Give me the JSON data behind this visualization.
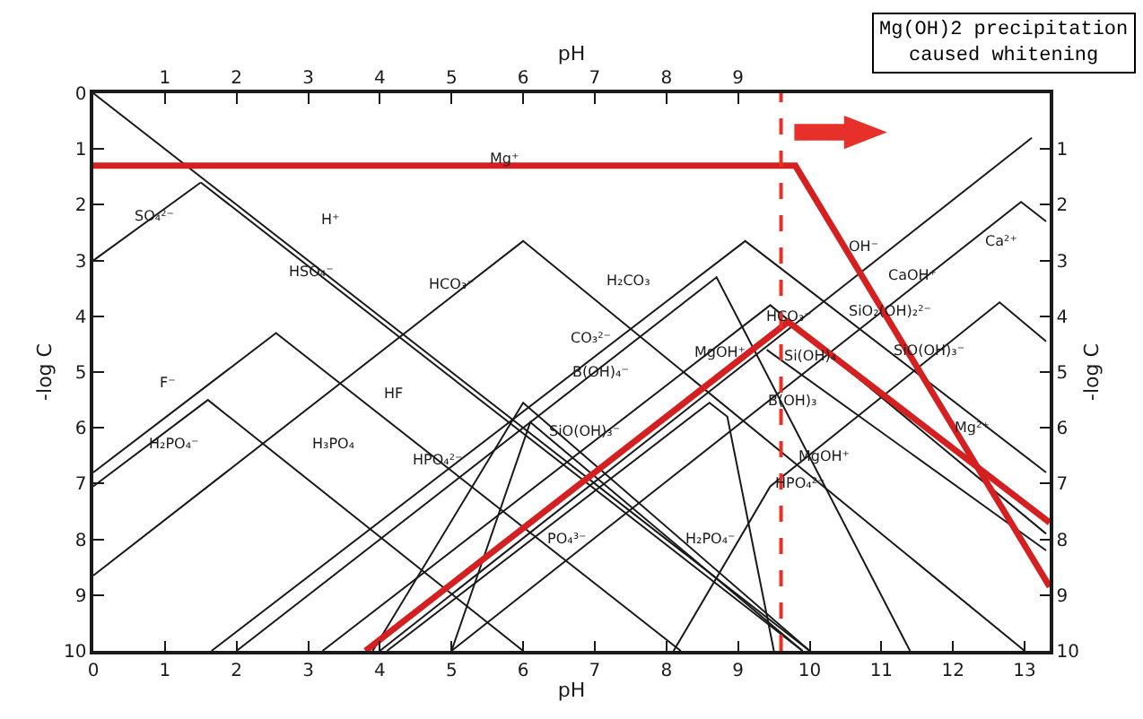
{
  "chart_data": {
    "type": "line",
    "xlabel": "pH",
    "ylabel": "-log C",
    "x2label": "pH",
    "y2label": "-log C",
    "xlim": [
      0,
      13.35
    ],
    "xticks": [
      0,
      1,
      2,
      3,
      4,
      5,
      6,
      7,
      8,
      9,
      10,
      11,
      12,
      13
    ],
    "x2lim": [
      0,
      13.35
    ],
    "x2ticks": [
      1,
      2,
      3,
      4,
      5,
      6,
      7,
      8,
      9
    ],
    "ylim": [
      10,
      0
    ],
    "yticks": [
      0,
      1,
      2,
      3,
      4,
      5,
      6,
      7,
      8,
      9,
      10
    ],
    "y2lim": [
      10,
      0
    ],
    "y2ticks": [
      1,
      2,
      3,
      4,
      5,
      6,
      7,
      8,
      9,
      10
    ],
    "marker": "none",
    "line_style": "solid",
    "series": [
      {
        "color": "#1a1a1a",
        "x": [
          0,
          10
        ],
        "values": [
          0,
          10
        ]
      },
      {
        "color": "#1a1a1a",
        "x": [
          1.5,
          9.9
        ],
        "values": [
          1.6,
          10
        ]
      },
      {
        "color": "#1a1a1a",
        "x": [
          0,
          1.5
        ],
        "values": [
          3,
          1.6
        ]
      },
      {
        "color": "#1a1a1a",
        "x": [
          4,
          13.1
        ],
        "values": [
          10,
          0.8
        ]
      },
      {
        "color": "#1a1a1a",
        "x": [
          5,
          12.95,
          13.3
        ],
        "values": [
          10,
          1.95,
          2.3
        ]
      },
      {
        "color": "#1a1a1a",
        "x": [
          0,
          6,
          13
        ],
        "values": [
          8.65,
          2.65,
          10
        ]
      },
      {
        "color": "#1a1a1a",
        "x": [
          1.65,
          9.1,
          13.3
        ],
        "values": [
          10,
          2.65,
          6.8
        ]
      },
      {
        "color": "#1a1a1a",
        "x": [
          2,
          8.7,
          11.4
        ],
        "values": [
          10,
          3.3,
          10
        ]
      },
      {
        "color": "#1a1a1a",
        "x": [
          3.2,
          9.45,
          13.3
        ],
        "values": [
          10,
          3.8,
          7.9
        ]
      },
      {
        "color": "#1a1a1a",
        "x": [
          0,
          2.55,
          8.2
        ],
        "values": [
          6.8,
          4.3,
          10
        ]
      },
      {
        "color": "#1a1a1a",
        "x": [
          0,
          1.6,
          6
        ],
        "values": [
          7.05,
          5.5,
          10
        ]
      },
      {
        "color": "#1a1a1a",
        "x": [
          3.9,
          6,
          10
        ],
        "values": [
          10,
          5.55,
          10
        ]
      },
      {
        "color": "#1a1a1a",
        "x": [
          5,
          6.1,
          9.9
        ],
        "values": [
          10,
          5.9,
          10
        ]
      },
      {
        "color": "#1a1a1a",
        "x": [
          4.1,
          8.6,
          8.85,
          9.5
        ],
        "values": [
          10,
          5.55,
          5.8,
          10
        ]
      },
      {
        "color": "#1a1a1a",
        "x": [
          8.1,
          9.45,
          12.65,
          13.3
        ],
        "values": [
          10,
          7.05,
          3.75,
          4.45
        ]
      },
      {
        "color": "#1a1a1a",
        "x": [
          9.4,
          13.3
        ],
        "values": [
          4.6,
          8.2
        ]
      },
      {
        "color": "#d42020",
        "x": [
          0,
          9.8,
          13.35
        ],
        "values": [
          1.3,
          1.3,
          8.85
        ]
      },
      {
        "color": "#d42020",
        "x": [
          3.8,
          9.7,
          13.35
        ],
        "values": [
          10,
          4.1,
          7.7
        ]
      }
    ],
    "ref_lines": [
      {
        "axis": "x",
        "value": 9.6,
        "color": "#e8302a",
        "line_style": "dashed"
      }
    ],
    "annotations": [
      "Mg(OH)2 precipitation\ncaused whitening",
      "Mg⁺",
      "SO₄²⁻",
      "H⁺",
      "HSO₄⁻",
      "HCO₃⁻",
      "H₂CO₃",
      "CO₃²⁻",
      "B(OH)₄⁻",
      "SiO(OH)₃⁻",
      "F⁻",
      "H₂PO₄⁻",
      "H₃PO₄",
      "HF",
      "HPO₄²⁻",
      "PO₄³⁻",
      "H₂PO₄⁻",
      "MgOH⁺",
      "Si(OH)₄",
      "B(OH)₃",
      "HCO₃⁻",
      "OH⁻",
      "CaOH⁺",
      "Ca²⁺",
      "SiO₂(OH)₂²⁻",
      "SiO(OH)₃⁻",
      "MgOH⁺",
      "Mg²⁺",
      "HPO₄²⁻"
    ]
  }
}
